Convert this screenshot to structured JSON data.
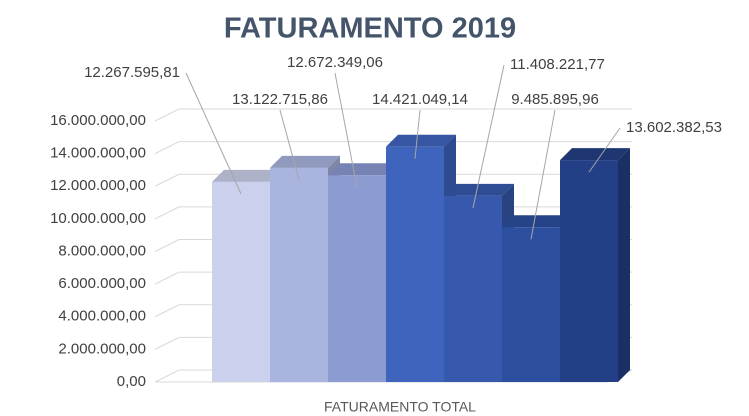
{
  "chart_data": {
    "type": "bar",
    "title": "FATURAMENTO 2019",
    "categories": [
      "FATURAMENTO TOTAL"
    ],
    "series": [
      {
        "color": "#cbd1ec",
        "values": [
          12267595.81
        ],
        "value_labels": [
          "12.267.595,81"
        ]
      },
      {
        "color": "#a9b4df",
        "values": [
          13122715.86
        ],
        "value_labels": [
          "13.122.715,86"
        ]
      },
      {
        "color": "#8c9bd2",
        "values": [
          12672349.06
        ],
        "value_labels": [
          "12.672.349,06"
        ]
      },
      {
        "color": "#3f64be",
        "values": [
          14421049.14
        ],
        "value_labels": [
          "14.421.049,14"
        ]
      },
      {
        "color": "#3659ad",
        "values": [
          11408221.77
        ],
        "value_labels": [
          "11.408.221,77"
        ]
      },
      {
        "color": "#2c4f9f",
        "values": [
          9485895.96
        ],
        "value_labels": [
          "9.485.895,96"
        ]
      },
      {
        "color": "#233f86",
        "values": [
          13602382.53
        ],
        "value_labels": [
          "13.602.382,53"
        ]
      }
    ],
    "ylim": [
      0,
      16000000
    ],
    "yticks": [
      {
        "value": 0,
        "label": "0,00"
      },
      {
        "value": 2000000,
        "label": "2.000.000,00"
      },
      {
        "value": 4000000,
        "label": "4.000.000,00"
      },
      {
        "value": 6000000,
        "label": "6.000.000,00"
      },
      {
        "value": 8000000,
        "label": "8.000.000,00"
      },
      {
        "value": 10000000,
        "label": "10.000.000,00"
      },
      {
        "value": 12000000,
        "label": "12.000.000,00"
      },
      {
        "value": 14000000,
        "label": "14.000.000,00"
      },
      {
        "value": 16000000,
        "label": "16.000.000,00"
      }
    ],
    "grid": true
  }
}
